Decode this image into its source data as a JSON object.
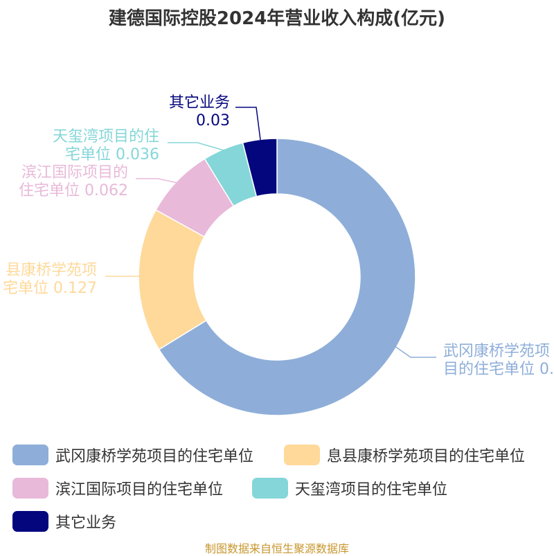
{
  "title": "建德国际控股2024年营业收入构成(亿元)",
  "source": "制图数据来自恒生聚源数据库",
  "chart_data": {
    "type": "pie",
    "title": "建德国际控股2024年营业收入构成(亿元)",
    "donut": true,
    "legend_position": "bottom",
    "series": [
      {
        "name": "武冈康桥学苑项目的住宅单位",
        "label_lines": [
          "武冈康桥学苑项",
          "目的住宅单位 0."
        ],
        "value": 0.5,
        "color": "#8eaed9"
      },
      {
        "name": "息县康桥学苑项目的住宅单位",
        "label_lines": [
          "县康桥学苑项",
          "宅单位 0.127"
        ],
        "value": 0.127,
        "color": "#fed99a"
      },
      {
        "name": "滨江国际项目的住宅单位",
        "label_lines": [
          "滨江国际项目的",
          "住宅单位 0.062"
        ],
        "value": 0.062,
        "color": "#e8b9d9"
      },
      {
        "name": "天玺湾项目的住宅单位",
        "label_lines": [
          "天玺湾项目的住",
          "宅单位 0.036"
        ],
        "value": 0.036,
        "color": "#85d6d8"
      },
      {
        "name": "其它业务",
        "label_lines": [
          "其它业务",
          "0.03"
        ],
        "value": 0.03,
        "color": "#04067e"
      }
    ]
  }
}
